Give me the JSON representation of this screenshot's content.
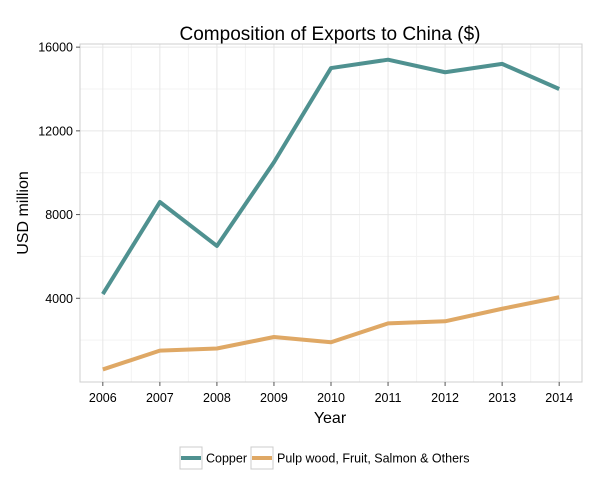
{
  "chart_data": {
    "type": "line",
    "title": "Composition of Exports to China ($)",
    "xlabel": "Year",
    "ylabel": "USD million",
    "x": [
      2006,
      2007,
      2008,
      2009,
      2010,
      2011,
      2012,
      2013,
      2014
    ],
    "xlim": [
      2005.6,
      2014.4
    ],
    "ylim": [
      0,
      16150
    ],
    "yticks": [
      4000,
      8000,
      12000,
      16000
    ],
    "grid": true,
    "legend_position": "bottom",
    "series": [
      {
        "name": "Copper",
        "color": "#4f9190",
        "values": [
          4200,
          8600,
          6500,
          10500,
          15000,
          15400,
          14800,
          15200,
          14000
        ]
      },
      {
        "name": "Pulp wood, Fruit, Salmon & Others",
        "color": "#dfa865",
        "values": [
          600,
          1500,
          1600,
          2150,
          1900,
          2800,
          2900,
          3500,
          4050
        ]
      }
    ]
  }
}
